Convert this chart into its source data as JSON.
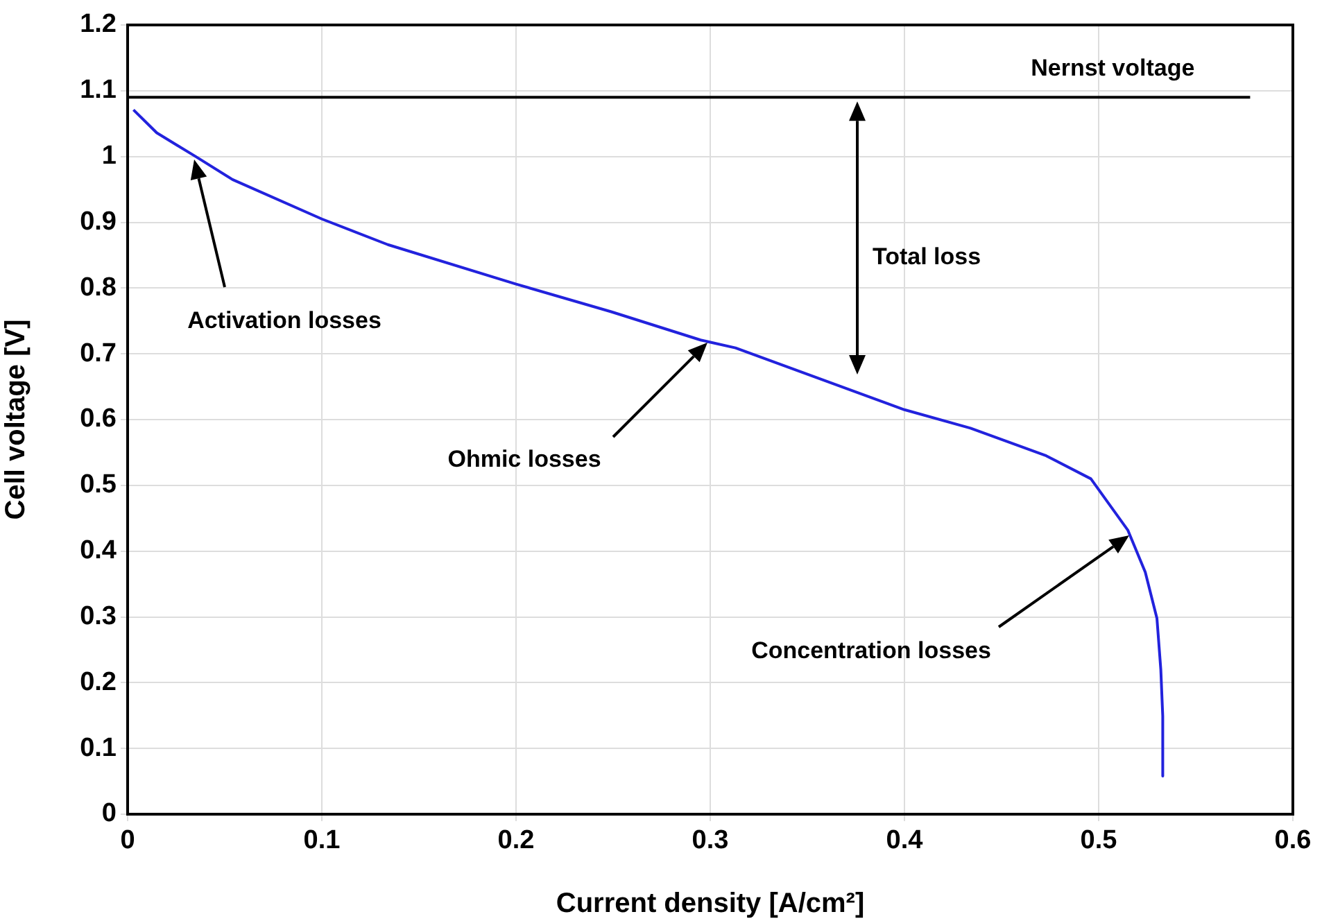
{
  "chart_data": {
    "type": "line",
    "xlabel": "Current density [A/cm²]",
    "ylabel": "Cell voltage [V]",
    "xlim": [
      0,
      0.6
    ],
    "xticks": [
      0,
      0.1,
      0.2,
      0.3,
      0.4,
      0.5,
      0.6
    ],
    "ylim": [
      0,
      1.2
    ],
    "yticks": [
      0,
      0.1,
      0.2,
      0.3,
      0.4,
      0.5,
      0.6,
      0.7,
      0.8,
      0.9,
      1,
      1.1,
      1.2
    ],
    "grid": true,
    "legend": false,
    "marker": "none",
    "line_style": "solid",
    "series": [
      {
        "name": "Nernst voltage",
        "color": "#000000",
        "x": [
          0,
          0.578
        ],
        "values": [
          1.09,
          1.09
        ]
      },
      {
        "color": "#2222dd",
        "x": [
          0.003,
          0.015,
          0.035,
          0.054,
          0.1,
          0.134,
          0.2,
          0.249,
          0.295,
          0.313,
          0.4,
          0.434,
          0.473,
          0.496,
          0.515,
          0.524,
          0.53,
          0.532,
          0.533,
          0.533
        ],
        "values": [
          1.071,
          1.036,
          1.0,
          0.965,
          0.905,
          0.866,
          0.806,
          0.764,
          0.721,
          0.709,
          0.615,
          0.587,
          0.545,
          0.51,
          0.432,
          0.368,
          0.298,
          0.22,
          0.149,
          0.058
        ]
      }
    ],
    "annotations": [
      "Activation losses",
      "Ohmic losses",
      "Concentration losses",
      "Total loss"
    ]
  }
}
